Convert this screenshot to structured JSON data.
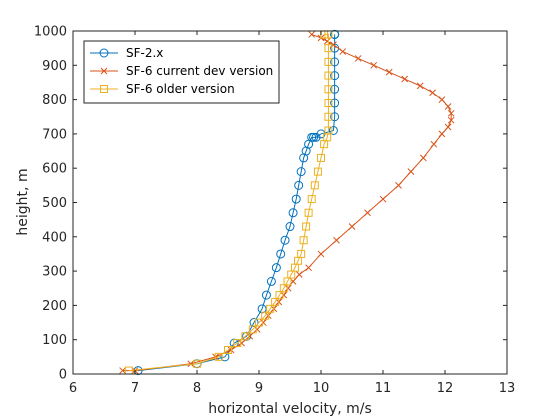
{
  "chart_data": {
    "type": "line",
    "xlabel": "horizontal velocity, m/s",
    "ylabel": "height, m",
    "xlim": [
      6,
      13
    ],
    "ylim": [
      0,
      1000
    ],
    "xticks": [
      6,
      7,
      8,
      9,
      10,
      11,
      12,
      13
    ],
    "yticks": [
      0,
      100,
      200,
      300,
      400,
      500,
      600,
      700,
      800,
      900,
      1000
    ],
    "grid": false,
    "legend_position": "top-left",
    "series": [
      {
        "name": "SF-2.x",
        "color": "#0072BD",
        "marker": "circle",
        "x": [
          7.05,
          8.0,
          8.45,
          8.6,
          8.8,
          8.92,
          9.05,
          9.12,
          9.2,
          9.28,
          9.35,
          9.42,
          9.5,
          9.55,
          9.6,
          9.64,
          9.68,
          9.72,
          9.76,
          9.8,
          9.85,
          9.88,
          9.92,
          10.0,
          10.2,
          10.22,
          10.22,
          10.22,
          10.22,
          10.22,
          10.22,
          10.22,
          10.22,
          10.22
        ],
        "y": [
          10,
          30,
          50,
          90,
          110,
          150,
          190,
          230,
          270,
          310,
          350,
          390,
          430,
          470,
          510,
          550,
          590,
          630,
          650,
          670,
          690,
          690,
          690,
          700,
          710,
          750,
          790,
          830,
          870,
          910,
          950,
          990,
          990,
          990
        ]
      },
      {
        "name": "SF-6 current dev version",
        "color": "#D95319",
        "marker": "x",
        "x": [
          6.8,
          7.0,
          7.9,
          8.3,
          8.55,
          8.72,
          8.85,
          8.97,
          9.07,
          9.15,
          9.24,
          9.32,
          9.4,
          9.47,
          9.55,
          9.65,
          9.8,
          10.0,
          10.25,
          10.5,
          10.75,
          11.0,
          11.25,
          11.45,
          11.65,
          11.82,
          11.95,
          12.05,
          12.1,
          12.1,
          12.05,
          11.95,
          11.8,
          11.6,
          11.35,
          11.1,
          10.85,
          10.6,
          10.35,
          10.2,
          10.1,
          10.0,
          9.85
        ],
        "y": [
          10,
          10,
          30,
          50,
          70,
          90,
          110,
          130,
          150,
          170,
          190,
          210,
          230,
          250,
          270,
          290,
          310,
          350,
          390,
          430,
          470,
          510,
          550,
          590,
          630,
          670,
          700,
          720,
          740,
          760,
          780,
          800,
          820,
          840,
          860,
          880,
          900,
          920,
          940,
          960,
          970,
          980,
          990
        ]
      },
      {
        "name": "SF-6 older version",
        "color": "#EDB120",
        "marker": "square",
        "x": [
          6.9,
          8.0,
          8.35,
          8.5,
          8.65,
          8.78,
          8.9,
          9.0,
          9.1,
          9.18,
          9.26,
          9.33,
          9.4,
          9.46,
          9.52,
          9.58,
          9.63,
          9.68,
          9.72,
          9.76,
          9.8,
          9.85,
          9.9,
          9.95,
          10.0,
          10.05,
          10.1,
          10.12,
          10.12,
          10.12,
          10.12,
          10.12,
          10.12,
          10.12,
          10.12,
          10.05,
          10.05
        ],
        "y": [
          10,
          30,
          50,
          70,
          90,
          110,
          130,
          150,
          170,
          190,
          210,
          230,
          250,
          270,
          290,
          310,
          330,
          350,
          390,
          430,
          470,
          510,
          550,
          590,
          630,
          670,
          690,
          710,
          750,
          790,
          830,
          870,
          910,
          950,
          990,
          990,
          990
        ]
      }
    ]
  }
}
